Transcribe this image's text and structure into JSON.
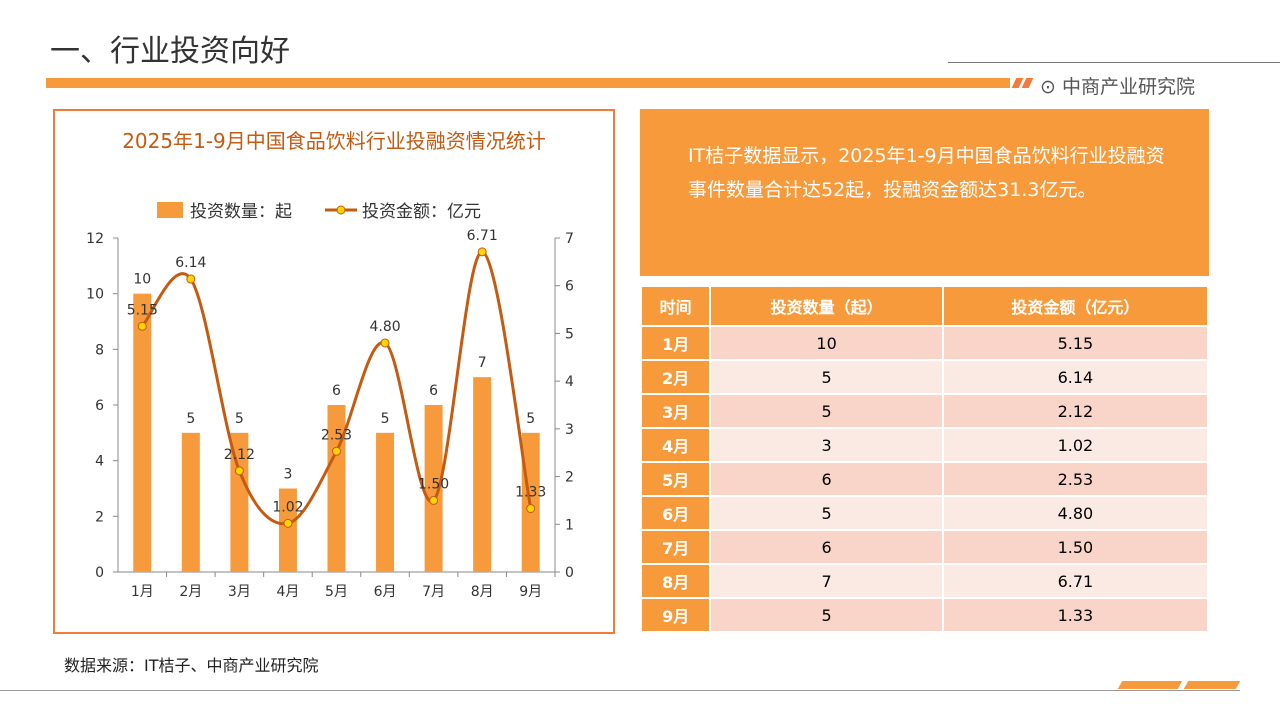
{
  "header": {
    "title": "一、行业投资向好",
    "brand": "中商产业研究院"
  },
  "info_text": "IT桔子数据显示，2025年1-9月中国食品饮料行业投融资事件数量合计达52起，投融资金额达31.3亿元。",
  "table": {
    "headers": [
      "时间",
      "投资数量（起）",
      "投资金额（亿元）"
    ],
    "rows": [
      [
        "1月",
        "10",
        "5.15"
      ],
      [
        "2月",
        "5",
        "6.14"
      ],
      [
        "3月",
        "5",
        "2.12"
      ],
      [
        "4月",
        "3",
        "1.02"
      ],
      [
        "5月",
        "6",
        "2.53"
      ],
      [
        "6月",
        "5",
        "4.80"
      ],
      [
        "7月",
        "6",
        "1.50"
      ],
      [
        "8月",
        "7",
        "6.71"
      ],
      [
        "9月",
        "5",
        "1.33"
      ]
    ]
  },
  "source": "数据来源：IT桔子、中商产业研究院",
  "colors": {
    "bar": "#f79a3c",
    "line": "#c55a11",
    "marker": "#ffd500"
  },
  "chart_data": {
    "type": "bar+line",
    "title": "2025年1-9月中国食品饮料行业投融资情况统计",
    "categories": [
      "1月",
      "2月",
      "3月",
      "4月",
      "5月",
      "6月",
      "7月",
      "8月",
      "9月"
    ],
    "series": [
      {
        "name": "投资数量：起",
        "type": "bar",
        "axis": "left",
        "values": [
          10,
          5,
          5,
          3,
          6,
          5,
          6,
          7,
          5
        ],
        "labels": [
          "10",
          "5",
          "5",
          "3",
          "6",
          "5",
          "6",
          "7",
          "5"
        ]
      },
      {
        "name": "投资金额：亿元",
        "type": "line",
        "axis": "right",
        "values": [
          5.15,
          6.14,
          2.12,
          1.02,
          2.53,
          4.8,
          1.5,
          6.71,
          1.33
        ],
        "labels": [
          "5.15",
          "6.14",
          "2.12",
          "1.02",
          "2.53",
          "4.80",
          "1.50",
          "6.71",
          "1.33"
        ]
      }
    ],
    "yleft": {
      "range": [
        0,
        12
      ],
      "ticks": [
        "0",
        "2",
        "4",
        "6",
        "8",
        "10",
        "12"
      ]
    },
    "yright": {
      "range": [
        0,
        7
      ],
      "ticks": [
        "0",
        "1",
        "2",
        "3",
        "4",
        "5",
        "6",
        "7"
      ]
    },
    "legend": "top"
  }
}
